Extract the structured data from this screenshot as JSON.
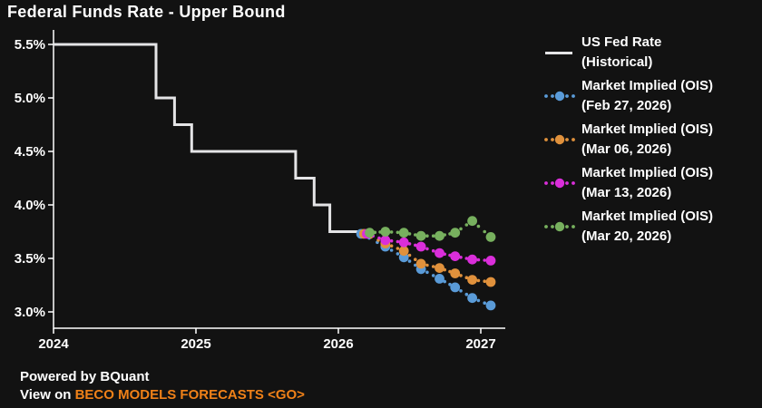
{
  "window": {
    "background": "#121212"
  },
  "chart_data": {
    "type": "line",
    "title": "Federal Funds Rate - Upper Bound",
    "xlabel": "",
    "ylabel": "",
    "x_ticks": [
      2024,
      2025,
      2026,
      2027
    ],
    "y_ticks": [
      5.5,
      5.0,
      4.5,
      4.0,
      3.5,
      3.0
    ],
    "y_tick_suffix": "%",
    "xlim": [
      2024.0,
      2027.17
    ],
    "ylim": [
      2.93,
      5.63
    ],
    "grid": false,
    "legend_position": "right",
    "axis_color": "#ffffff",
    "historical": {
      "name": "US Fed Rate",
      "sublabel": "(Historical)",
      "color": "#E4E4E6",
      "style": "step-line",
      "step_points": [
        [
          2024.0,
          5.5
        ],
        [
          2024.72,
          5.0
        ],
        [
          2024.85,
          4.75
        ],
        [
          2024.97,
          4.5
        ],
        [
          2025.7,
          4.25
        ],
        [
          2025.83,
          4.0
        ],
        [
          2025.94,
          3.75
        ],
        [
          2026.15,
          3.75
        ]
      ]
    },
    "series": [
      {
        "name": "Market Implied (OIS)",
        "sublabel": "(Feb 27, 2026)",
        "color": "#5A9BD8",
        "style": "dotted-markers",
        "points": [
          [
            2026.16,
            3.73
          ],
          [
            2026.33,
            3.61
          ],
          [
            2026.46,
            3.51
          ],
          [
            2026.58,
            3.4
          ],
          [
            2026.71,
            3.31
          ],
          [
            2026.82,
            3.23
          ],
          [
            2026.94,
            3.13
          ],
          [
            2027.07,
            3.06
          ]
        ]
      },
      {
        "name": "Market Implied (OIS)",
        "sublabel": "(Mar 06, 2026)",
        "color": "#E0913C",
        "style": "dotted-markers",
        "points": [
          [
            2026.18,
            3.73
          ],
          [
            2026.33,
            3.64
          ],
          [
            2026.46,
            3.57
          ],
          [
            2026.58,
            3.45
          ],
          [
            2026.71,
            3.41
          ],
          [
            2026.82,
            3.36
          ],
          [
            2026.94,
            3.3
          ],
          [
            2027.07,
            3.28
          ]
        ]
      },
      {
        "name": "Market Implied (OIS)",
        "sublabel": "(Mar 13, 2026)",
        "color": "#DA2EDA",
        "style": "dotted-markers",
        "points": [
          [
            2026.2,
            3.73
          ],
          [
            2026.33,
            3.67
          ],
          [
            2026.46,
            3.65
          ],
          [
            2026.58,
            3.61
          ],
          [
            2026.71,
            3.55
          ],
          [
            2026.82,
            3.52
          ],
          [
            2026.94,
            3.49
          ],
          [
            2027.07,
            3.48
          ]
        ]
      },
      {
        "name": "Market Implied (OIS)",
        "sublabel": "(Mar 20, 2026)",
        "color": "#77B05E",
        "style": "dotted-markers",
        "points": [
          [
            2026.22,
            3.74
          ],
          [
            2026.33,
            3.75
          ],
          [
            2026.46,
            3.74
          ],
          [
            2026.58,
            3.71
          ],
          [
            2026.71,
            3.71
          ],
          [
            2026.82,
            3.74
          ],
          [
            2026.94,
            3.85
          ],
          [
            2027.07,
            3.7
          ]
        ]
      }
    ]
  },
  "footer": {
    "powered": "Powered by BQuant",
    "view_prefix": "View on ",
    "view_link": "BECO MODELS FORECASTS <GO>",
    "link_color": "#F08118",
    "text_color": "#ffffff"
  }
}
